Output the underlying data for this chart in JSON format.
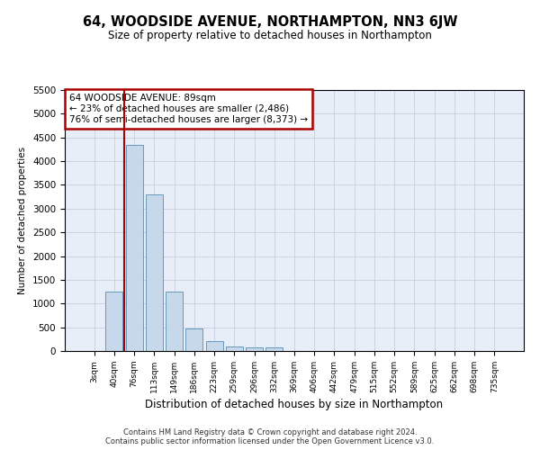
{
  "title": "64, WOODSIDE AVENUE, NORTHAMPTON, NN3 6JW",
  "subtitle": "Size of property relative to detached houses in Northampton",
  "xlabel": "Distribution of detached houses by size in Northampton",
  "ylabel": "Number of detached properties",
  "categories": [
    "3sqm",
    "40sqm",
    "76sqm",
    "113sqm",
    "149sqm",
    "186sqm",
    "223sqm",
    "259sqm",
    "296sqm",
    "332sqm",
    "369sqm",
    "406sqm",
    "442sqm",
    "479sqm",
    "515sqm",
    "552sqm",
    "589sqm",
    "625sqm",
    "662sqm",
    "698sqm",
    "735sqm"
  ],
  "values": [
    0,
    1250,
    4350,
    3300,
    1250,
    480,
    200,
    100,
    80,
    70,
    0,
    0,
    0,
    0,
    0,
    0,
    0,
    0,
    0,
    0,
    0
  ],
  "bar_color": "#c8d8eb",
  "bar_edge_color": "#6699bb",
  "vline_color": "#aa0000",
  "vline_x": 1.5,
  "annotation_text": "64 WOODSIDE AVENUE: 89sqm\n← 23% of detached houses are smaller (2,486)\n76% of semi-detached houses are larger (8,373) →",
  "annotation_box_facecolor": "#ffffff",
  "annotation_box_edgecolor": "#aa0000",
  "ylim": [
    0,
    5500
  ],
  "yticks": [
    0,
    500,
    1000,
    1500,
    2000,
    2500,
    3000,
    3500,
    4000,
    4500,
    5000,
    5500
  ],
  "footer_line1": "Contains HM Land Registry data © Crown copyright and database right 2024.",
  "footer_line2": "Contains public sector information licensed under the Open Government Licence v3.0.",
  "bg_color": "#ffffff",
  "plot_bg_color": "#e8eef8",
  "grid_color": "#c0c8d8"
}
